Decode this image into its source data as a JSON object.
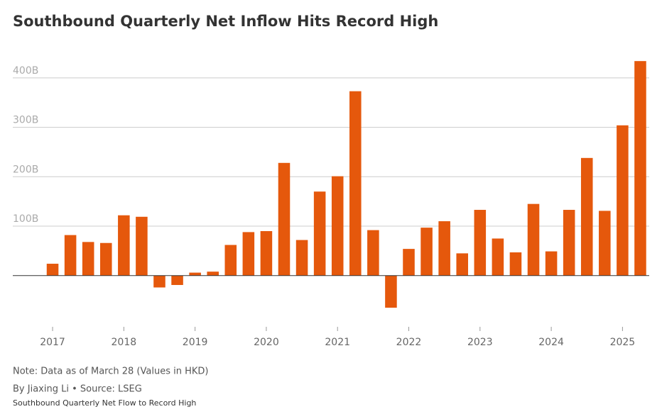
{
  "chart_data": {
    "type": "bar",
    "title": "Southbound Quarterly Net Inflow Hits Record High",
    "note": "Note: Data as of March 28 (Values in HKD)",
    "byline": "By Jiaxing Li • Source: LSEG",
    "footer": "Southbound Quarterly Net Flow to Record High",
    "categories": [
      "2017",
      null,
      null,
      null,
      "2018",
      null,
      null,
      null,
      "2019",
      null,
      null,
      null,
      "2020",
      null,
      null,
      null,
      "2021",
      null,
      null,
      null,
      "2022",
      null,
      null,
      null,
      "2023",
      null,
      null,
      null,
      "2024",
      null,
      null,
      null,
      "2025",
      null
    ],
    "values": [
      24,
      82,
      68,
      66,
      122,
      119,
      -24,
      -19,
      6,
      8,
      62,
      88,
      90,
      228,
      72,
      170,
      201,
      373,
      92,
      -65,
      54,
      97,
      110,
      45,
      133,
      75,
      47,
      145,
      49,
      133,
      238,
      131,
      304,
      434
    ],
    "color": "#e5580c",
    "ylim": [
      -95,
      450
    ],
    "yticks": [
      {
        "value": 100,
        "label": "100B"
      },
      {
        "value": 200,
        "label": "200B"
      },
      {
        "value": 300,
        "label": "300B"
      },
      {
        "value": 400,
        "label": "400B"
      }
    ],
    "grid": true
  }
}
